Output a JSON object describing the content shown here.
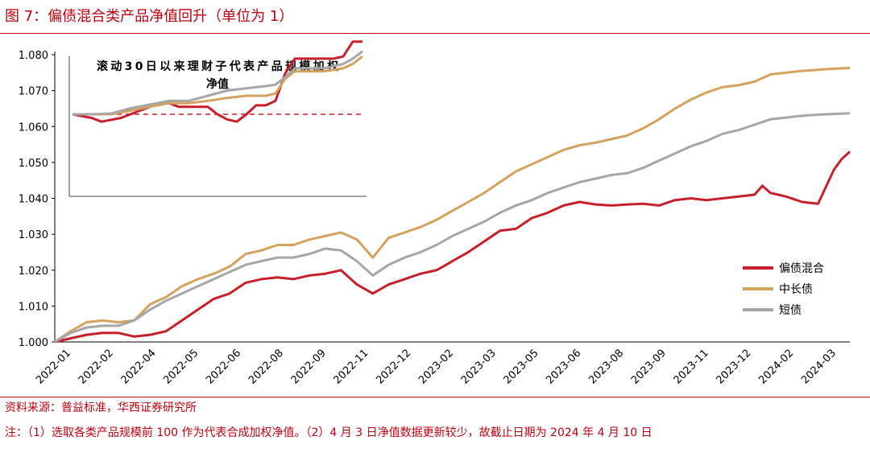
{
  "figure": {
    "title": "图 7：偏债混合类产品净值回升（单位为 1）",
    "source": "资料来源：普益标准，华西证券研究所",
    "note": "注：（1）选取各类产品规模前 100 作为代表合成加权净值。（2）4 月 3 日净值数据更新较少，故截止日期为 2024 年 4 月 10 日"
  },
  "colors": {
    "red": "#c8202a",
    "gold": "#d4a25c",
    "gray": "#a6a6a6",
    "accent": "#c0000f"
  },
  "chart_data": [
    {
      "type": "line",
      "title": "",
      "ylim": [
        1.0,
        1.08
      ],
      "y_ticks": [
        "1.000",
        "1.010",
        "1.020",
        "1.030",
        "1.040",
        "1.050",
        "1.060",
        "1.070",
        "1.080"
      ],
      "y_tick_values": [
        1.0,
        1.01,
        1.02,
        1.03,
        1.04,
        1.05,
        1.06,
        1.07,
        1.08
      ],
      "x_ticks": [
        "2022-01",
        "2022-02",
        "2022-04",
        "2022-05",
        "2022-06",
        "2022-08",
        "2022-09",
        "2022-11",
        "2022-12",
        "2023-02",
        "2023-03",
        "2023-05",
        "2023-06",
        "2023-08",
        "2023-09",
        "2023-11",
        "2023-12",
        "2024-02",
        "2024-03"
      ],
      "x_range": [
        0,
        100
      ],
      "legend_position": "right",
      "series": [
        {
          "name": "偏债混合",
          "color": "#c8202a",
          "x": [
            0,
            2,
            4,
            6,
            8,
            10,
            12,
            14,
            16,
            18,
            20,
            22,
            24,
            26,
            28,
            30,
            32,
            34,
            36,
            38,
            40,
            42,
            44,
            46,
            47,
            48,
            49,
            50,
            52,
            54,
            56,
            58,
            60,
            62,
            64,
            66,
            68,
            70,
            72,
            74,
            76,
            78,
            80,
            82,
            84,
            86,
            88,
            89,
            90,
            91,
            92,
            94,
            96,
            98,
            99,
            100
          ],
          "y": [
            1.0,
            1.001,
            1.002,
            1.0025,
            1.0025,
            1.0015,
            1.002,
            1.003,
            1.006,
            1.009,
            1.012,
            1.0135,
            1.0165,
            1.0175,
            1.018,
            1.0175,
            1.0185,
            1.019,
            1.02,
            1.016,
            1.0135,
            1.016,
            1.0175,
            1.019,
            1.0195,
            1.02,
            1.0212,
            1.0225,
            1.025,
            1.028,
            1.031,
            1.0315,
            1.0345,
            1.036,
            1.038,
            1.039,
            1.0383,
            1.038,
            1.0383,
            1.0385,
            1.038,
            1.0395,
            1.04,
            1.0395,
            1.04,
            1.0405,
            1.041,
            1.0435,
            1.0415,
            1.041,
            1.0405,
            1.039,
            1.0385,
            1.048,
            1.051,
            1.053
          ]
        },
        {
          "name": "中长债",
          "color": "#d4a25c",
          "x": [
            0,
            2,
            4,
            6,
            8,
            10,
            12,
            14,
            16,
            18,
            20,
            22,
            24,
            26,
            28,
            30,
            32,
            34,
            36,
            38,
            40,
            42,
            44,
            46,
            48,
            50,
            52,
            54,
            56,
            58,
            60,
            62,
            64,
            66,
            68,
            70,
            72,
            74,
            76,
            78,
            80,
            82,
            84,
            86,
            88,
            90,
            92,
            94,
            96,
            98,
            100
          ],
          "y": [
            1.0,
            1.003,
            1.0055,
            1.006,
            1.0055,
            1.006,
            1.0105,
            1.0125,
            1.0155,
            1.0175,
            1.019,
            1.021,
            1.0245,
            1.0255,
            1.027,
            1.027,
            1.0285,
            1.0295,
            1.0305,
            1.0285,
            1.0235,
            1.029,
            1.0305,
            1.032,
            1.034,
            1.0365,
            1.039,
            1.0415,
            1.0445,
            1.0475,
            1.0495,
            1.0515,
            1.0535,
            1.0548,
            1.0555,
            1.0565,
            1.0575,
            1.0595,
            1.062,
            1.065,
            1.0675,
            1.0695,
            1.071,
            1.0715,
            1.0725,
            1.0745,
            1.075,
            1.0755,
            1.0758,
            1.0761,
            1.0763
          ]
        },
        {
          "name": "短债",
          "color": "#a6a6a6",
          "x": [
            0,
            2,
            4,
            6,
            8,
            10,
            12,
            14,
            16,
            18,
            20,
            22,
            24,
            26,
            28,
            30,
            32,
            34,
            36,
            38,
            40,
            42,
            44,
            46,
            48,
            50,
            52,
            54,
            56,
            58,
            60,
            62,
            64,
            66,
            68,
            70,
            72,
            74,
            76,
            78,
            80,
            82,
            84,
            86,
            88,
            90,
            92,
            94,
            96,
            98,
            100
          ],
          "y": [
            1.0,
            1.0025,
            1.004,
            1.0045,
            1.0045,
            1.006,
            1.009,
            1.0115,
            1.0135,
            1.0155,
            1.0175,
            1.0195,
            1.0215,
            1.0225,
            1.0235,
            1.0235,
            1.0245,
            1.026,
            1.0255,
            1.0225,
            1.0185,
            1.0215,
            1.0235,
            1.025,
            1.027,
            1.0295,
            1.0315,
            1.0335,
            1.036,
            1.038,
            1.0395,
            1.0415,
            1.043,
            1.0445,
            1.0455,
            1.0465,
            1.047,
            1.0485,
            1.0505,
            1.0525,
            1.0545,
            1.056,
            1.058,
            1.059,
            1.0605,
            1.062,
            1.0625,
            1.063,
            1.0633,
            1.0635,
            1.0637
          ]
        }
      ]
    },
    {
      "type": "line",
      "title": "滚动30日以来理财子代表产品规模加权净值",
      "x_range": [
        0,
        30
      ],
      "ylim": [
        0.993,
        1.012
      ],
      "reference_line": 1.0,
      "series": [
        {
          "name": "偏债混合",
          "color": "#c8202a",
          "x": [
            0,
            2,
            3,
            5,
            6,
            7,
            8,
            9,
            10,
            11,
            12,
            13,
            14,
            15,
            16,
            17,
            18,
            19,
            20,
            21,
            22,
            23,
            24,
            25,
            26,
            27,
            28,
            29,
            30
          ],
          "y": [
            1.0,
            0.9995,
            0.999,
            0.9995,
            1.0,
            1.0005,
            1.001,
            1.0015,
            1.0015,
            1.001,
            1.001,
            1.001,
            1.001,
            1.0,
            0.9993,
            0.999,
            1.0,
            1.0012,
            1.0012,
            1.0018,
            1.0055,
            1.0075,
            1.0075,
            1.0075,
            1.0075,
            1.0075,
            1.0078,
            1.0098,
            1.0098
          ]
        },
        {
          "name": "中长债",
          "color": "#d4a25c",
          "x": [
            0,
            2,
            4,
            6,
            8,
            10,
            12,
            14,
            16,
            18,
            20,
            21,
            22,
            23,
            24,
            26,
            28,
            29,
            30
          ],
          "y": [
            1.0,
            1.0,
            1.0,
            1.0005,
            1.001,
            1.0015,
            1.0015,
            1.0018,
            1.0022,
            1.0025,
            1.0025,
            1.0028,
            1.0048,
            1.0058,
            1.0058,
            1.0058,
            1.0062,
            1.0068,
            1.0078
          ]
        },
        {
          "name": "短债",
          "color": "#a6a6a6",
          "x": [
            0,
            2,
            4,
            6,
            8,
            10,
            12,
            14,
            16,
            18,
            20,
            21,
            22,
            23,
            24,
            26,
            28,
            29,
            30
          ],
          "y": [
            1.0,
            1.0,
            1.0001,
            1.0008,
            1.0013,
            1.0018,
            1.0018,
            1.0025,
            1.0032,
            1.0035,
            1.0038,
            1.004,
            1.005,
            1.0062,
            1.0062,
            1.0062,
            1.0068,
            1.0075,
            1.0085
          ]
        }
      ]
    }
  ]
}
